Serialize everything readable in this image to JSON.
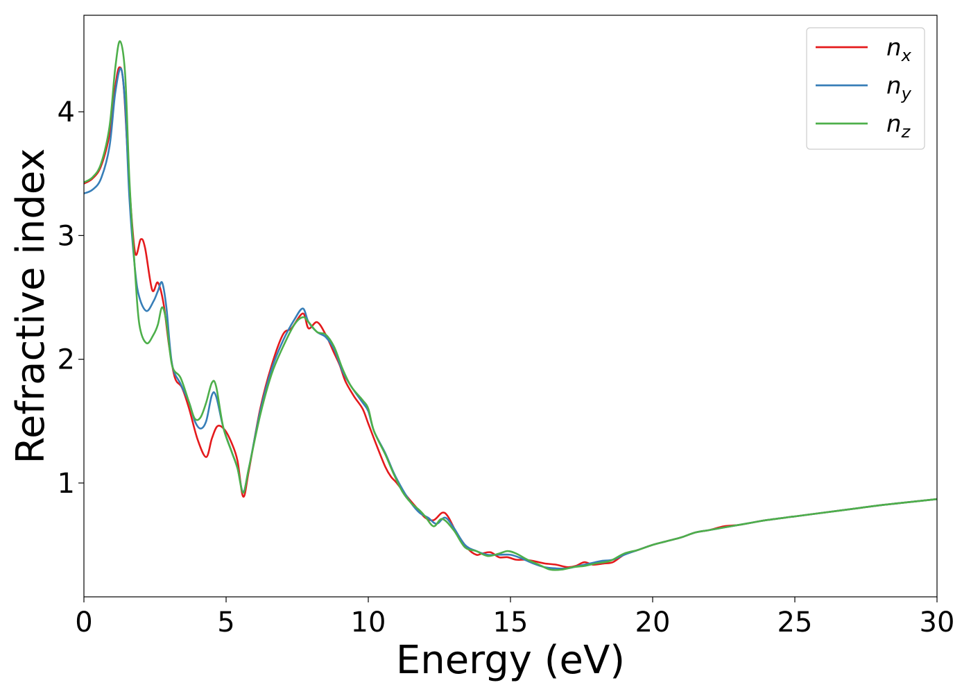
{
  "chart_data": {
    "type": "line",
    "title": "",
    "xlabel": "Energy (eV)",
    "ylabel": "Refractive index",
    "xlim": [
      0,
      30
    ],
    "ylim": [
      0.08,
      4.78
    ],
    "xticks": [
      0,
      5,
      10,
      15,
      20,
      25,
      30
    ],
    "yticks": [
      1,
      2,
      3,
      4
    ],
    "grid": false,
    "legend_position": "top-right",
    "series": [
      {
        "name": "n",
        "subscript": "x",
        "color": "#e41a1c",
        "points": [
          [
            0,
            3.42
          ],
          [
            0.3,
            3.46
          ],
          [
            0.6,
            3.56
          ],
          [
            0.9,
            3.82
          ],
          [
            1.1,
            4.2
          ],
          [
            1.25,
            4.36
          ],
          [
            1.4,
            4.2
          ],
          [
            1.6,
            3.4
          ],
          [
            1.8,
            2.86
          ],
          [
            2.0,
            2.97
          ],
          [
            2.15,
            2.9
          ],
          [
            2.4,
            2.56
          ],
          [
            2.6,
            2.62
          ],
          [
            2.8,
            2.45
          ],
          [
            3.0,
            2.1
          ],
          [
            3.2,
            1.85
          ],
          [
            3.45,
            1.77
          ],
          [
            3.7,
            1.6
          ],
          [
            4.0,
            1.35
          ],
          [
            4.3,
            1.21
          ],
          [
            4.5,
            1.36
          ],
          [
            4.7,
            1.46
          ],
          [
            4.95,
            1.43
          ],
          [
            5.2,
            1.32
          ],
          [
            5.4,
            1.18
          ],
          [
            5.6,
            0.89
          ],
          [
            5.8,
            1.1
          ],
          [
            6.2,
            1.6
          ],
          [
            6.6,
            1.95
          ],
          [
            7.0,
            2.2
          ],
          [
            7.3,
            2.25
          ],
          [
            7.7,
            2.37
          ],
          [
            7.9,
            2.25
          ],
          [
            8.2,
            2.3
          ],
          [
            8.5,
            2.2
          ],
          [
            8.8,
            2.05
          ],
          [
            9.0,
            1.95
          ],
          [
            9.2,
            1.82
          ],
          [
            9.5,
            1.7
          ],
          [
            9.8,
            1.6
          ],
          [
            10.0,
            1.48
          ],
          [
            10.3,
            1.3
          ],
          [
            10.6,
            1.13
          ],
          [
            10.8,
            1.05
          ],
          [
            11.0,
            1.0
          ],
          [
            11.4,
            0.88
          ],
          [
            11.7,
            0.8
          ],
          [
            12.0,
            0.72
          ],
          [
            12.3,
            0.7
          ],
          [
            12.6,
            0.76
          ],
          [
            12.8,
            0.73
          ],
          [
            13.1,
            0.6
          ],
          [
            13.5,
            0.47
          ],
          [
            13.8,
            0.42
          ],
          [
            14.0,
            0.43
          ],
          [
            14.3,
            0.44
          ],
          [
            14.6,
            0.4
          ],
          [
            14.9,
            0.4
          ],
          [
            15.2,
            0.38
          ],
          [
            15.5,
            0.38
          ],
          [
            15.8,
            0.37
          ],
          [
            16.2,
            0.35
          ],
          [
            16.6,
            0.34
          ],
          [
            17.0,
            0.32
          ],
          [
            17.3,
            0.33
          ],
          [
            17.6,
            0.36
          ],
          [
            17.9,
            0.34
          ],
          [
            18.3,
            0.35
          ],
          [
            18.6,
            0.36
          ],
          [
            19.0,
            0.42
          ],
          [
            19.5,
            0.46
          ],
          [
            20.0,
            0.5
          ],
          [
            20.5,
            0.53
          ],
          [
            21.0,
            0.56
          ],
          [
            21.5,
            0.6
          ],
          [
            22.0,
            0.62
          ],
          [
            22.5,
            0.65
          ],
          [
            23.0,
            0.66
          ],
          [
            23.5,
            0.68
          ],
          [
            24.0,
            0.7
          ],
          [
            25.0,
            0.73
          ],
          [
            26.0,
            0.76
          ],
          [
            27.0,
            0.79
          ],
          [
            28.0,
            0.82
          ],
          [
            29.0,
            0.845
          ],
          [
            30.0,
            0.87
          ]
        ]
      },
      {
        "name": "n",
        "subscript": "y",
        "color": "#377eb8",
        "points": [
          [
            0,
            3.34
          ],
          [
            0.3,
            3.37
          ],
          [
            0.6,
            3.46
          ],
          [
            0.9,
            3.72
          ],
          [
            1.1,
            4.15
          ],
          [
            1.3,
            4.35
          ],
          [
            1.45,
            4.05
          ],
          [
            1.6,
            3.3
          ],
          [
            1.8,
            2.72
          ],
          [
            1.95,
            2.5
          ],
          [
            2.2,
            2.39
          ],
          [
            2.45,
            2.47
          ],
          [
            2.6,
            2.55
          ],
          [
            2.75,
            2.62
          ],
          [
            2.9,
            2.42
          ],
          [
            3.1,
            1.96
          ],
          [
            3.4,
            1.8
          ],
          [
            3.7,
            1.65
          ],
          [
            3.9,
            1.5
          ],
          [
            4.1,
            1.44
          ],
          [
            4.3,
            1.5
          ],
          [
            4.5,
            1.71
          ],
          [
            4.65,
            1.7
          ],
          [
            4.9,
            1.45
          ],
          [
            5.2,
            1.25
          ],
          [
            5.4,
            1.12
          ],
          [
            5.6,
            0.93
          ],
          [
            5.8,
            1.12
          ],
          [
            6.2,
            1.58
          ],
          [
            6.6,
            1.92
          ],
          [
            7.0,
            2.15
          ],
          [
            7.4,
            2.32
          ],
          [
            7.7,
            2.41
          ],
          [
            7.9,
            2.3
          ],
          [
            8.2,
            2.22
          ],
          [
            8.5,
            2.18
          ],
          [
            8.8,
            2.08
          ],
          [
            9.1,
            1.9
          ],
          [
            9.4,
            1.78
          ],
          [
            9.8,
            1.65
          ],
          [
            10.0,
            1.58
          ],
          [
            10.2,
            1.42
          ],
          [
            10.6,
            1.24
          ],
          [
            10.9,
            1.08
          ],
          [
            11.2,
            0.95
          ],
          [
            11.5,
            0.84
          ],
          [
            11.8,
            0.76
          ],
          [
            12.1,
            0.72
          ],
          [
            12.4,
            0.67
          ],
          [
            12.7,
            0.72
          ],
          [
            13.0,
            0.64
          ],
          [
            13.4,
            0.5
          ],
          [
            13.8,
            0.45
          ],
          [
            14.2,
            0.42
          ],
          [
            14.6,
            0.42
          ],
          [
            15.0,
            0.42
          ],
          [
            15.4,
            0.39
          ],
          [
            15.8,
            0.35
          ],
          [
            16.2,
            0.32
          ],
          [
            16.6,
            0.31
          ],
          [
            17.0,
            0.31
          ],
          [
            17.4,
            0.33
          ],
          [
            17.8,
            0.35
          ],
          [
            18.2,
            0.37
          ],
          [
            18.6,
            0.38
          ],
          [
            19.0,
            0.42
          ],
          [
            19.5,
            0.46
          ],
          [
            20.0,
            0.5
          ],
          [
            20.5,
            0.53
          ],
          [
            21.0,
            0.56
          ],
          [
            21.5,
            0.6
          ],
          [
            22.0,
            0.62
          ],
          [
            22.5,
            0.64
          ],
          [
            23.0,
            0.66
          ],
          [
            23.5,
            0.68
          ],
          [
            24.0,
            0.7
          ],
          [
            25.0,
            0.73
          ],
          [
            26.0,
            0.76
          ],
          [
            27.0,
            0.79
          ],
          [
            28.0,
            0.82
          ],
          [
            29.0,
            0.845
          ],
          [
            30.0,
            0.87
          ]
        ]
      },
      {
        "name": "n",
        "subscript": "z",
        "color": "#4daf4a",
        "points": [
          [
            0,
            3.43
          ],
          [
            0.3,
            3.47
          ],
          [
            0.6,
            3.58
          ],
          [
            0.9,
            3.88
          ],
          [
            1.1,
            4.35
          ],
          [
            1.27,
            4.57
          ],
          [
            1.45,
            4.3
          ],
          [
            1.6,
            3.45
          ],
          [
            1.8,
            2.7
          ],
          [
            1.95,
            2.28
          ],
          [
            2.2,
            2.13
          ],
          [
            2.45,
            2.2
          ],
          [
            2.6,
            2.28
          ],
          [
            2.75,
            2.42
          ],
          [
            2.9,
            2.3
          ],
          [
            3.1,
            1.95
          ],
          [
            3.4,
            1.85
          ],
          [
            3.7,
            1.65
          ],
          [
            3.9,
            1.52
          ],
          [
            4.1,
            1.53
          ],
          [
            4.3,
            1.65
          ],
          [
            4.5,
            1.81
          ],
          [
            4.65,
            1.78
          ],
          [
            4.9,
            1.45
          ],
          [
            5.2,
            1.25
          ],
          [
            5.4,
            1.12
          ],
          [
            5.6,
            0.92
          ],
          [
            5.8,
            1.12
          ],
          [
            6.2,
            1.55
          ],
          [
            6.6,
            1.88
          ],
          [
            7.0,
            2.1
          ],
          [
            7.4,
            2.28
          ],
          [
            7.7,
            2.34
          ],
          [
            7.9,
            2.3
          ],
          [
            8.2,
            2.22
          ],
          [
            8.5,
            2.2
          ],
          [
            8.8,
            2.1
          ],
          [
            9.1,
            1.92
          ],
          [
            9.4,
            1.78
          ],
          [
            9.8,
            1.67
          ],
          [
            10.0,
            1.6
          ],
          [
            10.2,
            1.42
          ],
          [
            10.6,
            1.23
          ],
          [
            10.9,
            1.07
          ],
          [
            11.2,
            0.93
          ],
          [
            11.5,
            0.84
          ],
          [
            11.8,
            0.78
          ],
          [
            12.0,
            0.73
          ],
          [
            12.3,
            0.65
          ],
          [
            12.6,
            0.71
          ],
          [
            13.0,
            0.62
          ],
          [
            13.4,
            0.48
          ],
          [
            13.8,
            0.45
          ],
          [
            14.2,
            0.41
          ],
          [
            14.6,
            0.43
          ],
          [
            14.9,
            0.45
          ],
          [
            15.2,
            0.43
          ],
          [
            15.6,
            0.38
          ],
          [
            16.0,
            0.34
          ],
          [
            16.4,
            0.3
          ],
          [
            16.8,
            0.3
          ],
          [
            17.2,
            0.32
          ],
          [
            17.6,
            0.33
          ],
          [
            18.0,
            0.35
          ],
          [
            18.5,
            0.37
          ],
          [
            19.0,
            0.43
          ],
          [
            19.5,
            0.46
          ],
          [
            20.0,
            0.5
          ],
          [
            20.5,
            0.53
          ],
          [
            21.0,
            0.56
          ],
          [
            21.5,
            0.6
          ],
          [
            22.0,
            0.62
          ],
          [
            22.5,
            0.64
          ],
          [
            23.0,
            0.66
          ],
          [
            23.5,
            0.68
          ],
          [
            24.0,
            0.7
          ],
          [
            25.0,
            0.73
          ],
          [
            26.0,
            0.76
          ],
          [
            27.0,
            0.79
          ],
          [
            28.0,
            0.82
          ],
          [
            29.0,
            0.845
          ],
          [
            30.0,
            0.87
          ]
        ]
      }
    ]
  }
}
